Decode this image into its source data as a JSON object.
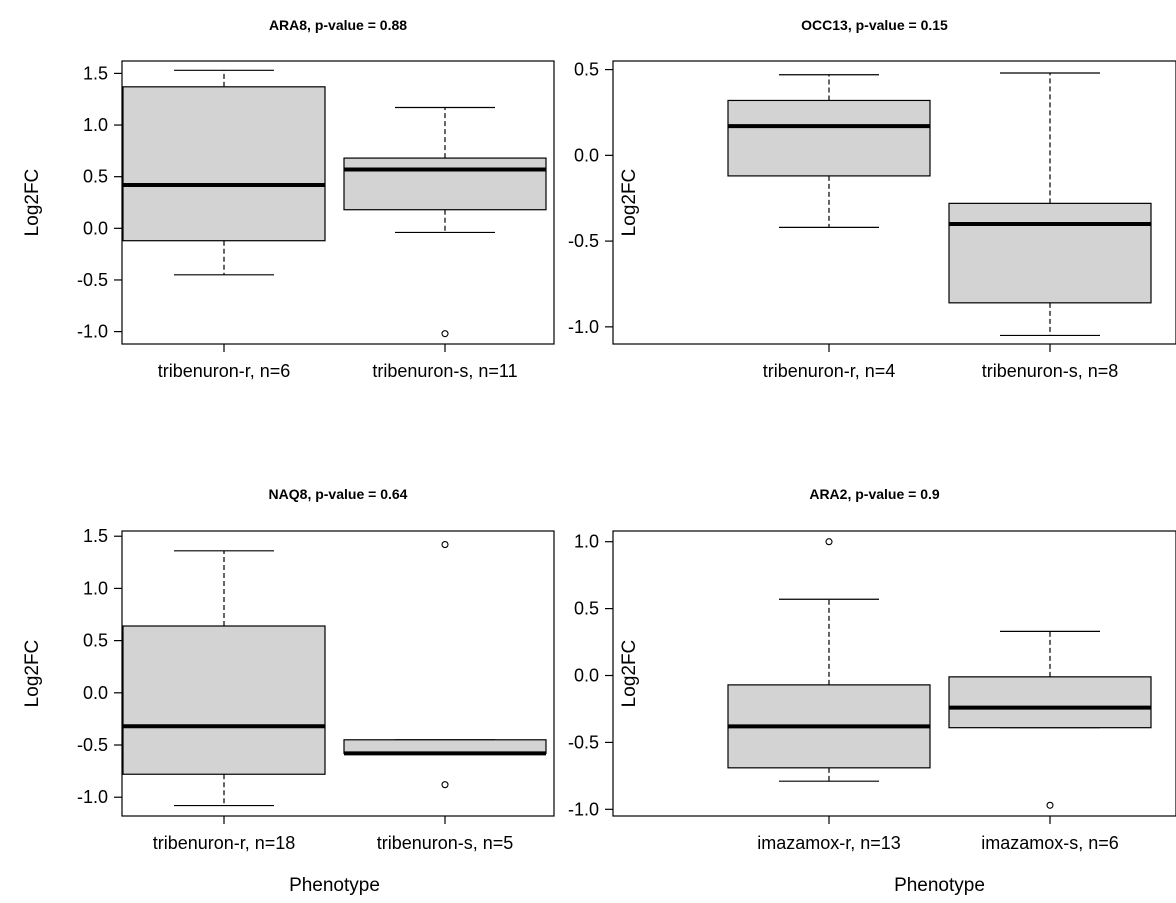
{
  "chart_data": [
    {
      "type": "boxplot",
      "title": "ARA8, p-value = 0.88",
      "ylabel": "Log2FC",
      "xlabel": "",
      "ylim": [
        -1.12,
        1.62
      ],
      "yticks": [
        1.5,
        1.0,
        0.5,
        0.0,
        -0.5,
        -1.0
      ],
      "ytick_labels": [
        "1.5",
        "1.0",
        "0.5",
        "0.0",
        "-0.5",
        "-1.0"
      ],
      "groups": [
        {
          "label": "tribenuron-r, n=6",
          "lower_whisker": -0.45,
          "q1": -0.12,
          "median": 0.42,
          "q3": 1.37,
          "upper_whisker": 1.53,
          "outliers": []
        },
        {
          "label": "tribenuron-s, n=11",
          "lower_whisker": -0.04,
          "q1": 0.18,
          "median": 0.57,
          "q3": 0.68,
          "upper_whisker": 1.17,
          "outliers": [
            -1.02
          ]
        }
      ]
    },
    {
      "type": "boxplot",
      "title": "OCC13, p-value = 0.15",
      "ylabel": "Log2FC",
      "xlabel": "",
      "ylim": [
        -1.1,
        0.55
      ],
      "yticks": [
        0.5,
        0.0,
        -0.5,
        -1.0
      ],
      "ytick_labels": [
        "0.5",
        "0.0",
        "-0.5",
        "-1.0"
      ],
      "groups": [
        {
          "label": "tribenuron-r, n=4",
          "lower_whisker": -0.42,
          "q1": -0.12,
          "median": 0.17,
          "q3": 0.32,
          "upper_whisker": 0.47,
          "outliers": []
        },
        {
          "label": "tribenuron-s, n=8",
          "lower_whisker": -1.05,
          "q1": -0.86,
          "median": -0.4,
          "q3": -0.28,
          "upper_whisker": 0.48,
          "outliers": []
        }
      ]
    },
    {
      "type": "boxplot",
      "title": "NAQ8, p-value = 0.64",
      "ylabel": "Log2FC",
      "xlabel": "Phenotype",
      "ylim": [
        -1.18,
        1.55
      ],
      "yticks": [
        1.5,
        1.0,
        0.5,
        0.0,
        -0.5,
        -1.0
      ],
      "ytick_labels": [
        "1.5",
        "1.0",
        "0.5",
        "0.0",
        "-0.5",
        "-1.0"
      ],
      "groups": [
        {
          "label": "tribenuron-r, n=18",
          "lower_whisker": -1.08,
          "q1": -0.78,
          "median": -0.32,
          "q3": 0.64,
          "upper_whisker": 1.36,
          "outliers": []
        },
        {
          "label": "tribenuron-s, n=5",
          "lower_whisker": -0.58,
          "q1": -0.58,
          "median": -0.58,
          "q3": -0.45,
          "upper_whisker": -0.45,
          "outliers": [
            1.42,
            -0.88
          ]
        }
      ]
    },
    {
      "type": "boxplot",
      "title": "ARA2, p-value = 0.9",
      "ylabel": "Log2FC",
      "xlabel": "Phenotype",
      "ylim": [
        -1.05,
        1.08
      ],
      "yticks": [
        1.0,
        0.5,
        0.0,
        -0.5,
        -1.0
      ],
      "ytick_labels": [
        "1.0",
        "0.5",
        "0.0",
        "-0.5",
        "-1.0"
      ],
      "groups": [
        {
          "label": "imazamox-r, n=13",
          "lower_whisker": -0.79,
          "q1": -0.69,
          "median": -0.38,
          "q3": -0.07,
          "upper_whisker": 0.57,
          "outliers": [
            1.0
          ]
        },
        {
          "label": "imazamox-s, n=6",
          "lower_whisker": -0.39,
          "q1": -0.39,
          "median": -0.24,
          "q3": -0.01,
          "upper_whisker": 0.33,
          "outliers": [
            -0.97
          ]
        }
      ]
    }
  ]
}
